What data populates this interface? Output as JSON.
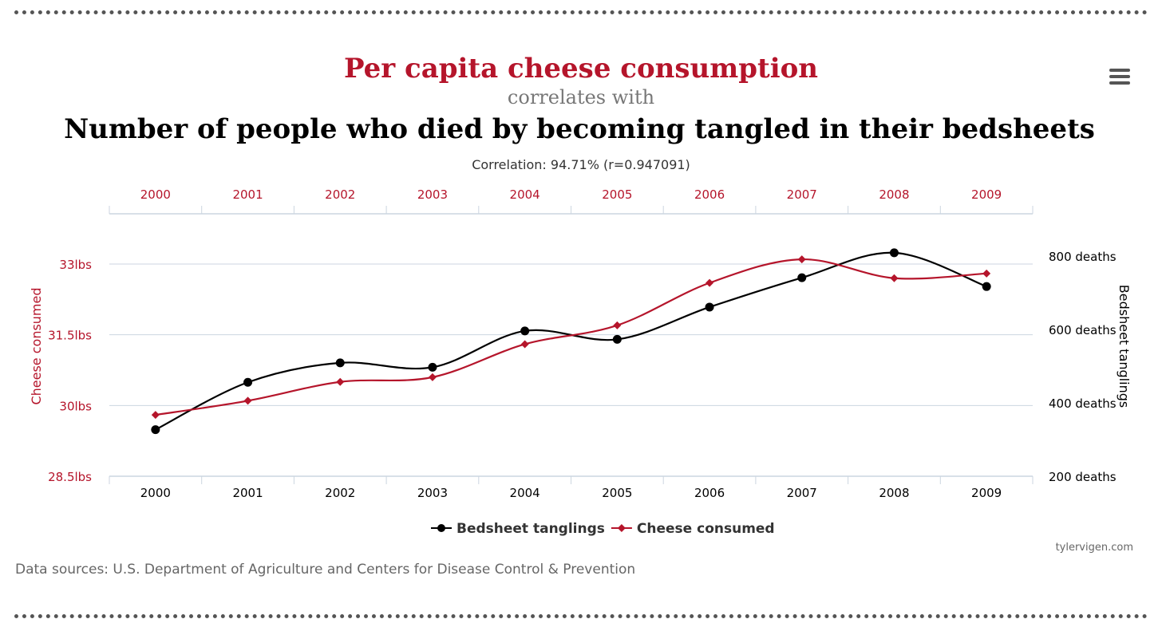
{
  "title_line1": "Per capita cheese consumption",
  "title_line2": "correlates with",
  "title_line3": "Number of people who died by becoming tangled in their bedsheets",
  "correlation": "Correlation: 94.71% (r=0.947091)",
  "sources": "Data sources: U.S. Department of Agriculture and Centers for Disease Control & Prevention",
  "credit": "tylervigen.com",
  "menu_icon": "hamburger-menu-icon",
  "colors": {
    "cheese": "#b5152b",
    "bedsheet": "#000000",
    "grid": "#ccd6e0"
  },
  "chart_data": {
    "type": "line",
    "x": [
      "2000",
      "2001",
      "2002",
      "2003",
      "2004",
      "2005",
      "2006",
      "2007",
      "2008",
      "2009"
    ],
    "series": [
      {
        "name": "Bedsheet tanglings",
        "axis": "right",
        "unit": "deaths",
        "marker": "circle",
        "values": [
          327,
          456,
          509,
          497,
          596,
          573,
          661,
          741,
          809,
          717
        ]
      },
      {
        "name": "Cheese consumed",
        "axis": "left",
        "unit": "lbs",
        "marker": "diamond",
        "values": [
          29.8,
          30.1,
          30.5,
          30.6,
          31.3,
          31.7,
          32.6,
          33.1,
          32.7,
          32.8
        ]
      }
    ],
    "left_axis": {
      "label": "Cheese consumed",
      "ticks": [
        "28.5lbs",
        "30lbs",
        "31.5lbs",
        "33lbs"
      ],
      "tick_values": [
        28.5,
        30,
        31.5,
        33
      ],
      "range": [
        28.5,
        34
      ]
    },
    "right_axis": {
      "label": "Bedsheet tanglings",
      "ticks": [
        "200 deaths",
        "400 deaths",
        "600 deaths",
        "800 deaths"
      ],
      "tick_values": [
        200,
        400,
        600,
        800
      ],
      "range": [
        200,
        860
      ]
    },
    "legend": {
      "position": "bottom-center",
      "entries": [
        "Bedsheet tanglings",
        "Cheese consumed"
      ]
    },
    "grid": true
  }
}
